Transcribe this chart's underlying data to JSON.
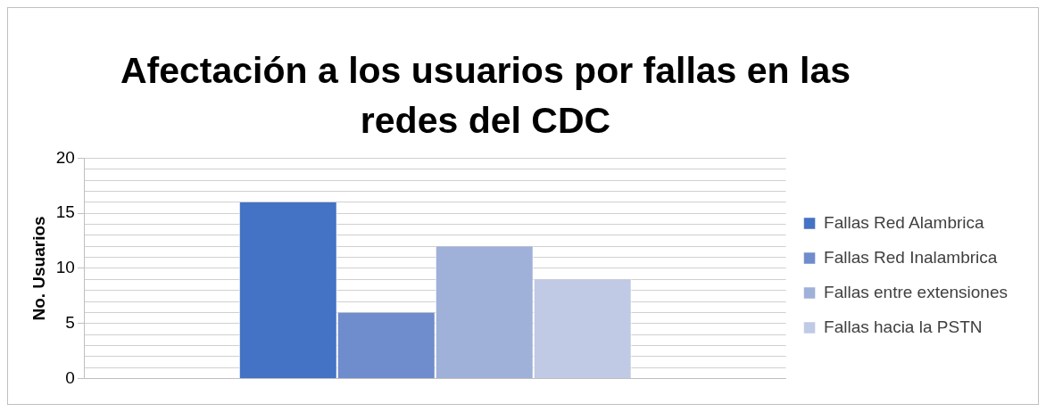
{
  "chart_data": {
    "type": "bar",
    "title": "Afectación a los usuarios por fallas en las redes del CDC",
    "ylabel": "No. Usuarios",
    "categories": [
      null
    ],
    "series": [
      {
        "name": "Fallas Red Alambrica",
        "color": "#4472c4",
        "values": [
          16
        ]
      },
      {
        "name": "Fallas Red Inalambrica",
        "color": "#6f8ccc",
        "values": [
          6
        ]
      },
      {
        "name": "Fallas entre extensiones",
        "color": "#9fb0d9",
        "values": [
          12
        ]
      },
      {
        "name": "Fallas hacia la PSTN",
        "color": "#c0cae4",
        "values": [
          9
        ]
      }
    ],
    "ylim": [
      0,
      20
    ],
    "yticks": [
      0,
      {
        "value": 1,
        "label": null
      },
      {
        "value": 2,
        "label": null
      },
      {
        "value": 3,
        "label": null
      },
      {
        "value": 4,
        "label": null
      },
      5,
      {
        "value": 6,
        "label": null
      },
      {
        "value": 7,
        "label": null
      },
      {
        "value": 8,
        "label": null
      },
      {
        "value": 9,
        "label": null
      },
      10,
      {
        "value": 11,
        "label": null
      },
      {
        "value": 12,
        "label": null
      },
      {
        "value": 13,
        "label": null
      },
      {
        "value": 14,
        "label": null
      },
      15,
      {
        "value": 16,
        "label": null
      },
      {
        "value": 17,
        "label": null
      },
      {
        "value": 18,
        "label": null
      },
      {
        "value": 19,
        "label": null
      },
      20
    ],
    "grid": "y",
    "legend": "right"
  }
}
